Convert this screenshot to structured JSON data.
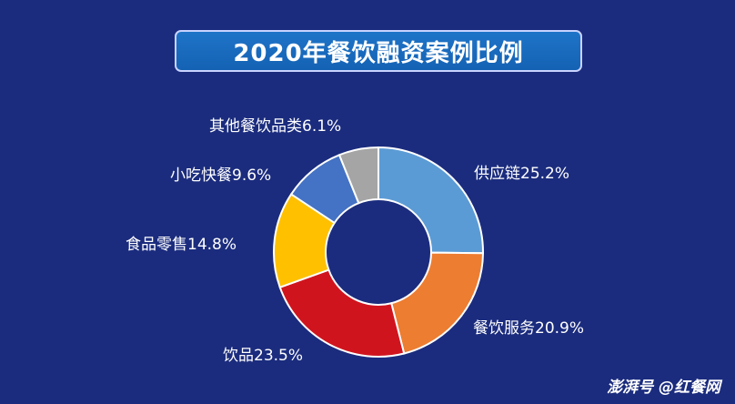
{
  "chart_data": {
    "type": "pie",
    "donut": true,
    "title": "2020年餐饮融资案例比例",
    "categories": [
      "供应链",
      "餐饮服务",
      "饮品",
      "食品零售",
      "小吃快餐",
      "其他餐饮品类"
    ],
    "values": [
      25.2,
      20.9,
      23.5,
      14.8,
      9.6,
      6.1
    ],
    "unit": "%",
    "labels": [
      "供应链25.2%",
      "餐饮服务20.9%",
      "饮品23.5%",
      "食品零售14.8%",
      "小吃快餐9.6%",
      "其他餐饮品类6.1%"
    ],
    "colors": [
      "#5b9bd5",
      "#ed7d31",
      "#d0141e",
      "#ffc000",
      "#4472c4",
      "#a5a5a5"
    ]
  },
  "watermark": {
    "text": "澎湃号 @红餐网"
  }
}
